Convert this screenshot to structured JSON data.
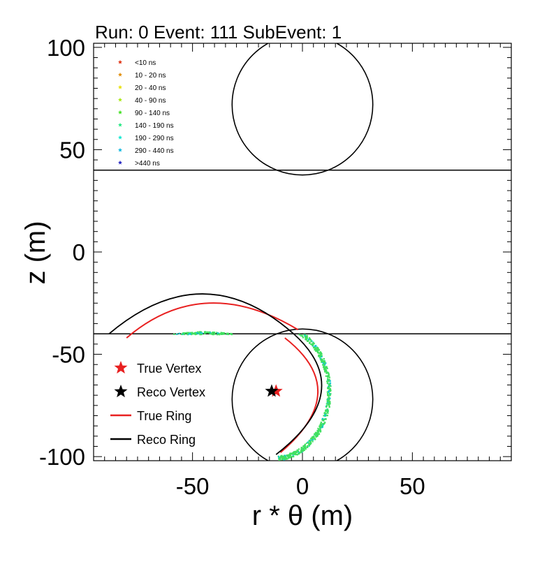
{
  "chart_data": {
    "type": "scatter",
    "title": "Run: 0  Event: 111  SubEvent: 1",
    "xlabel": "r * θ (m)",
    "ylabel": "z (m)",
    "xlim": [
      -95,
      95
    ],
    "ylim": [
      -102,
      102
    ],
    "xticks": [
      -50,
      0,
      50
    ],
    "yticks": [
      100,
      50,
      0,
      -50,
      -100
    ],
    "xtick_labels": [
      "-50",
      "0",
      "50"
    ],
    "ytick_labels": [
      "100",
      "50",
      "0",
      "-50",
      "-100"
    ],
    "grid": false,
    "legend_position": "bottom-left",
    "time_legend_position": "top-left",
    "time_legend": [
      {
        "label": "<10 ns",
        "color": "#e03010"
      },
      {
        "label": "10 - 20 ns",
        "color": "#e08a00"
      },
      {
        "label": "20 - 40 ns",
        "color": "#e8e000"
      },
      {
        "label": "40 - 90 ns",
        "color": "#a8e810"
      },
      {
        "label": "90 - 140 ns",
        "color": "#40e020"
      },
      {
        "label": "140 - 190 ns",
        "color": "#20e880"
      },
      {
        "label": "190 - 290 ns",
        "color": "#10e8d0"
      },
      {
        "label": "290 - 440 ns",
        "color": "#10b8e0"
      },
      {
        "label": ">440 ns",
        "color": "#2020c0"
      }
    ],
    "legend": [
      {
        "label": "True Vertex",
        "marker": "star",
        "color": "#e82020"
      },
      {
        "label": "Reco Vertex",
        "marker": "star",
        "color": "#000000"
      },
      {
        "label": "True Ring",
        "marker": "line",
        "color": "#e82020"
      },
      {
        "label": "Reco Ring",
        "marker": "line",
        "color": "#000000"
      }
    ],
    "detector_outline": {
      "top_cap": {
        "center": [
          0,
          72
        ],
        "radius": 32
      },
      "bottom_cap": {
        "center": [
          0,
          -72
        ],
        "radius": 32
      },
      "barrel_top_z": 40,
      "barrel_bottom_z": -40
    },
    "true_vertex": [
      -12,
      -68
    ],
    "reco_vertex": [
      -14,
      -68
    ],
    "hits_color": "#40e060",
    "hits_edge_color": "#10c8d0"
  }
}
